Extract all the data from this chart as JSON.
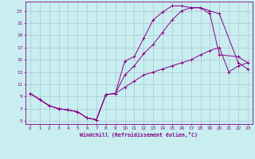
{
  "bg_color": "#c8eef0",
  "grid_color": "#aabbcc",
  "line_color": "#880088",
  "xlabel": "Windchill (Refroidissement éolien,°C)",
  "xlim": [
    -0.5,
    23.5
  ],
  "ylim": [
    4.5,
    24.5
  ],
  "xticks": [
    0,
    1,
    2,
    3,
    4,
    5,
    6,
    7,
    8,
    9,
    10,
    11,
    12,
    13,
    14,
    15,
    16,
    17,
    18,
    19,
    20,
    21,
    22,
    23
  ],
  "yticks": [
    5,
    7,
    9,
    11,
    13,
    15,
    17,
    19,
    21,
    23
  ],
  "line1_x": [
    0,
    1,
    2,
    3,
    4,
    5,
    6,
    7,
    8,
    9,
    10,
    11,
    12,
    13,
    14,
    15,
    16,
    17,
    18,
    19,
    20,
    22,
    23
  ],
  "line1_y": [
    9.5,
    8.5,
    7.5,
    7.0,
    6.8,
    6.5,
    5.5,
    5.2,
    9.3,
    9.5,
    14.8,
    15.5,
    18.5,
    21.5,
    22.8,
    23.8,
    23.8,
    23.5,
    23.5,
    22.5,
    15.8,
    15.5,
    14.5
  ],
  "line2_x": [
    0,
    1,
    2,
    3,
    4,
    5,
    6,
    7,
    8,
    9,
    10,
    11,
    12,
    13,
    14,
    15,
    16,
    17,
    18,
    19,
    20,
    22,
    23
  ],
  "line2_y": [
    9.5,
    8.5,
    7.5,
    7.0,
    6.8,
    6.5,
    5.5,
    5.2,
    9.3,
    9.5,
    12.5,
    14.0,
    16.0,
    17.5,
    19.5,
    21.5,
    23.0,
    23.5,
    23.5,
    23.0,
    22.5,
    14.5,
    13.5
  ],
  "line3_x": [
    0,
    1,
    2,
    3,
    4,
    5,
    6,
    7,
    8,
    9,
    10,
    11,
    12,
    13,
    14,
    15,
    16,
    17,
    18,
    19,
    20,
    21,
    22,
    23
  ],
  "line3_y": [
    9.5,
    8.5,
    7.5,
    7.0,
    6.8,
    6.5,
    5.5,
    5.2,
    9.3,
    9.5,
    10.5,
    11.5,
    12.5,
    13.0,
    13.5,
    14.0,
    14.5,
    15.0,
    15.8,
    16.5,
    17.0,
    13.0,
    14.0,
    14.5
  ]
}
